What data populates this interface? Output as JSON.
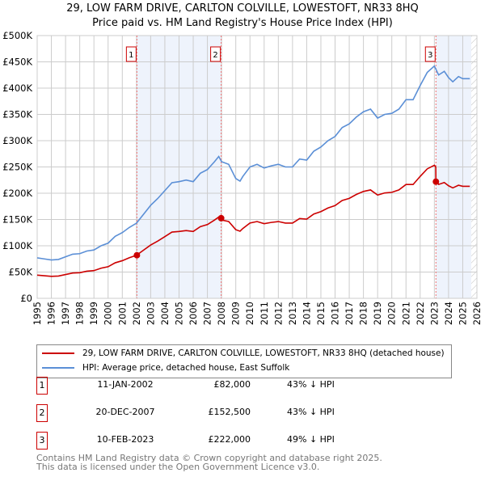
{
  "chart_data": {
    "type": "line",
    "title": "29, LOW FARM DRIVE, CARLTON COLVILLE, LOWESTOFT, NR33 8HQ",
    "subtitle": "Price paid vs. HM Land Registry's House Price Index (HPI)",
    "xlim": [
      1995,
      2026
    ],
    "ylim": [
      0,
      500000
    ],
    "yticks": [
      "£0",
      "£50K",
      "£100K",
      "£150K",
      "£200K",
      "£250K",
      "£300K",
      "£350K",
      "£400K",
      "£450K",
      "£500K"
    ],
    "xticks": [
      "1995",
      "1996",
      "1997",
      "1998",
      "1999",
      "2000",
      "2001",
      "2002",
      "2003",
      "2004",
      "2005",
      "2006",
      "2007",
      "2008",
      "2009",
      "2010",
      "2011",
      "2012",
      "2013",
      "2014",
      "2015",
      "2016",
      "2017",
      "2018",
      "2019",
      "2020",
      "2021",
      "2022",
      "2023",
      "2024",
      "2025",
      "2026"
    ],
    "hpi": {
      "name": "HPI: Average price, detached house, East Suffolk",
      "color": "#5b8fd6",
      "x": [
        1995,
        1995.5,
        1996,
        1996.5,
        1997,
        1997.5,
        1998,
        1998.5,
        1999,
        1999.5,
        2000,
        2000.5,
        2001,
        2001.5,
        2002,
        2002.5,
        2003,
        2003.5,
        2004,
        2004.5,
        2005,
        2005.5,
        2006,
        2006.5,
        2007,
        2007.5,
        2007.8,
        2008,
        2008.5,
        2009,
        2009.3,
        2009.5,
        2010,
        2010.5,
        2011,
        2011.5,
        2012,
        2012.5,
        2013,
        2013.5,
        2014,
        2014.5,
        2015,
        2015.5,
        2016,
        2016.5,
        2017,
        2017.5,
        2018,
        2018.5,
        2019,
        2019.5,
        2020,
        2020.5,
        2021,
        2021.5,
        2022,
        2022.5,
        2023,
        2023.3,
        2023.7,
        2024,
        2024.3,
        2024.7,
        2025,
        2025.5
      ],
      "y": [
        77000,
        75000,
        73000,
        74000,
        79000,
        84000,
        85000,
        90000,
        92000,
        100000,
        105000,
        118000,
        125000,
        135000,
        143000,
        160000,
        177000,
        190000,
        205000,
        220000,
        222000,
        225000,
        222000,
        238000,
        245000,
        260000,
        270000,
        260000,
        255000,
        228000,
        223000,
        232000,
        250000,
        255000,
        248000,
        252000,
        255000,
        250000,
        250000,
        265000,
        263000,
        280000,
        288000,
        300000,
        308000,
        325000,
        332000,
        345000,
        355000,
        360000,
        343000,
        350000,
        352000,
        360000,
        378000,
        378000,
        405000,
        430000,
        442000,
        425000,
        432000,
        420000,
        412000,
        422000,
        418000,
        418000
      ]
    },
    "property": {
      "name": "29, LOW FARM DRIVE, CARLTON COLVILLE, LOWESTOFT, NR33 8HQ (detached house)",
      "color": "#cc0000",
      "ratio_before_sale3": 0.573,
      "ratio_after_sale3": 0.51
    },
    "sales": [
      {
        "label": "1",
        "x": 2002.03,
        "date": "11-JAN-2002",
        "price_value": 82000,
        "price": "£82,000",
        "hpi": "43% ↓ HPI"
      },
      {
        "label": "2",
        "x": 2007.97,
        "date": "20-DEC-2007",
        "price_value": 152500,
        "price": "£152,500",
        "hpi": "43% ↓ HPI"
      },
      {
        "label": "3",
        "x": 2023.11,
        "date": "10-FEB-2023",
        "price_value": 222000,
        "price": "£222,000",
        "hpi": "49% ↓ HPI"
      }
    ],
    "grid": true,
    "legend": "bottom"
  },
  "footer": [
    "Contains HM Land Registry data © Crown copyright and database right 2025.",
    "This data is licensed under the Open Government Licence v3.0."
  ]
}
